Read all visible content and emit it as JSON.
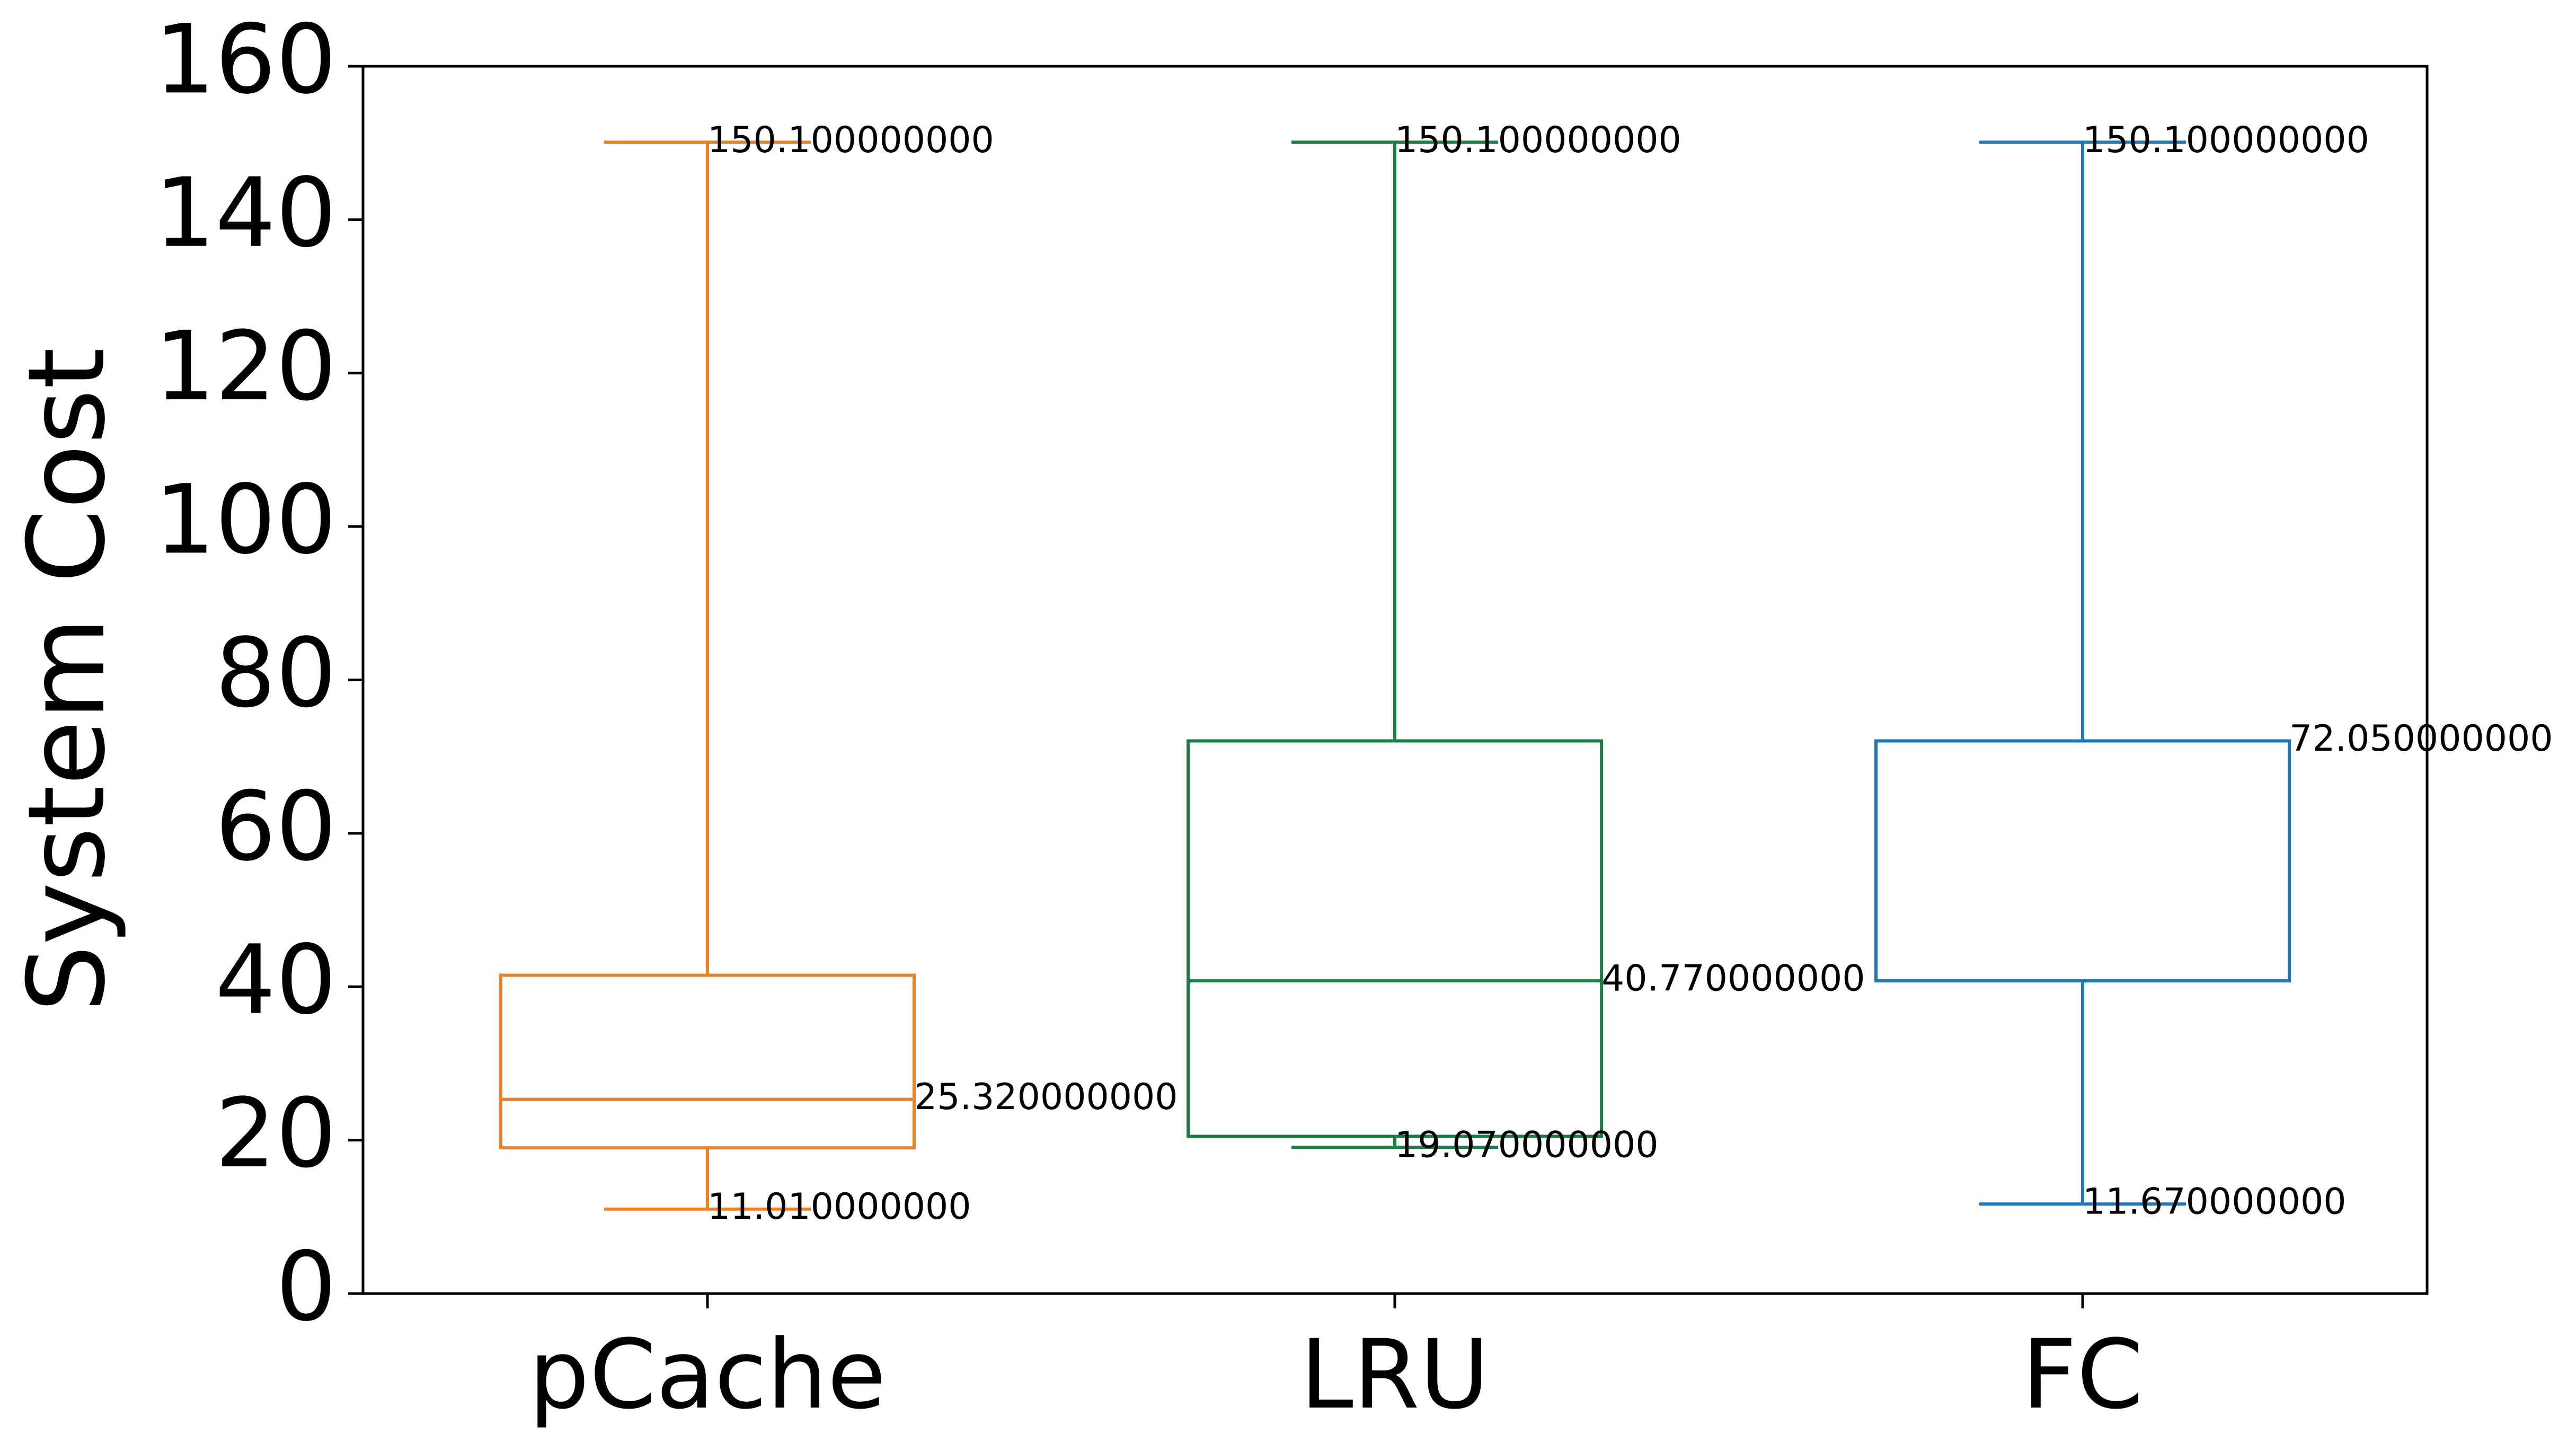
{
  "chart_data": {
    "type": "box",
    "title": "",
    "xlabel": "",
    "ylabel": "System Cost",
    "ylim": [
      0,
      160
    ],
    "yticks": [
      0,
      20,
      40,
      60,
      80,
      100,
      120,
      140,
      160
    ],
    "grid": false,
    "categories": [
      "pCache",
      "LRU",
      "FC"
    ],
    "boxes": [
      {
        "category": "pCache",
        "color": "#e6822a",
        "whisker_low": 11.01,
        "q1": 19.0,
        "median": 25.32,
        "q3": 41.5,
        "whisker_high": 150.1,
        "annotations": [
          {
            "text": "150.100000000",
            "value": 150.1,
            "anchor": "cap"
          },
          {
            "text": "25.320000000",
            "value": 25.32,
            "anchor": "box-right"
          },
          {
            "text": "11.010000000",
            "value": 11.01,
            "anchor": "cap"
          }
        ]
      },
      {
        "category": "LRU",
        "color": "#1a7e45",
        "whisker_low": 19.07,
        "q1": 20.5,
        "median": 40.77,
        "q3": 72.05,
        "whisker_high": 150.1,
        "annotations": [
          {
            "text": "150.100000000",
            "value": 150.1,
            "anchor": "cap"
          },
          {
            "text": "40.770000000",
            "value": 40.77,
            "anchor": "box-right"
          },
          {
            "text": "19.070000000",
            "value": 19.07,
            "anchor": "cap"
          }
        ]
      },
      {
        "category": "FC",
        "color": "#1f78bc",
        "whisker_low": 11.67,
        "q1": 40.77,
        "median": 40.77,
        "q3": 72.05,
        "whisker_high": 150.1,
        "annotations": [
          {
            "text": "150.100000000",
            "value": 150.1,
            "anchor": "cap"
          },
          {
            "text": "72.050000000",
            "value": 72.05,
            "anchor": "box-right"
          },
          {
            "text": "11.670000000",
            "value": 11.67,
            "anchor": "cap"
          }
        ]
      }
    ]
  }
}
